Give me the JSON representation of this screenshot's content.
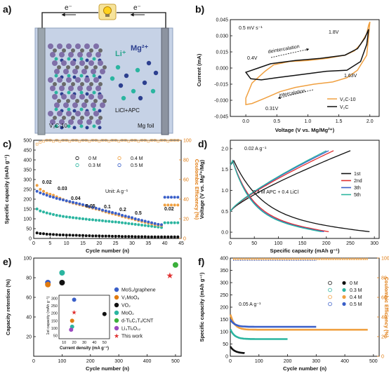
{
  "panel_letters": [
    "a)",
    "b)",
    "c)",
    "d)",
    "e)",
    "f)"
  ],
  "colors": {
    "orange": "#f0a040",
    "black": "#111111",
    "teal": "#2bb5a0",
    "blue": "#3a5fc8",
    "green": "#3bb0a0",
    "red": "#e03030"
  },
  "panel_a": {
    "electron_left": "e⁻",
    "electron_right": "e⁻",
    "li_label": "Li⁺",
    "mg_label": "Mg²⁺",
    "electrolyte": "LiCl+APC",
    "left_electrode": "V₂C-10",
    "right_electrode": "Mg foil",
    "bulb_icon": "lightbulb-icon"
  },
  "panel_b": {
    "scan_rate": "0.5 mV s⁻¹",
    "deintercalation": "deintercalation",
    "intercalation": "intercalation",
    "peaks": [
      "0.4V",
      "1.8V",
      "1.63V",
      "0.31V"
    ],
    "legend": [
      "V₂C-10",
      "V₂C"
    ],
    "ylabel": "Current (mA)",
    "xlabel": "Voltage (V vs. Mg/Mg²⁺)",
    "xticks": [
      "0.0",
      "0.5",
      "1.0",
      "1.5",
      "2.0"
    ],
    "yticks": [
      "0.045",
      "0.030",
      "0.015",
      "0.000",
      "-0.015",
      "-0.030",
      "-0.045"
    ]
  },
  "panel_c": {
    "ylabel": "Specific capacity (mAh g⁻¹)",
    "y2label": "Coulombic Efficiency (%)",
    "xlabel": "Cycle number (n)",
    "xticks": [
      "0",
      "5",
      "10",
      "15",
      "20",
      "25",
      "30",
      "35",
      "40",
      "45"
    ],
    "yticks": [
      "0",
      "50",
      "100",
      "150",
      "200",
      "250",
      "300",
      "350",
      "400",
      "450",
      "500"
    ],
    "y2ticks": [
      "0",
      "20",
      "40",
      "60",
      "80",
      "100"
    ],
    "legend": [
      "0 M",
      "0.3 M",
      "0.4 M",
      "0.5 M"
    ],
    "unit": "Unit: A g⁻¹",
    "rates": [
      "0.02",
      "0.03",
      "0.04",
      "0.05",
      "0.1",
      "0.2",
      "0.5",
      "0.02"
    ]
  },
  "panel_d": {
    "rate": "0.02 A g⁻¹",
    "electrolyte": "0.4 M APC + 0.4 LiCl",
    "legend": [
      "1st",
      "2nd",
      "3th",
      "5th"
    ],
    "ylabel": "Voltage (V vs. Mg²⁺/Mg)",
    "xlabel": "Specific capacity (mAh g⁻¹)",
    "xticks": [
      "0",
      "50",
      "100",
      "150",
      "200",
      "250",
      "300"
    ],
    "yticks": [
      "0.0",
      "0.5",
      "1.0",
      "1.5",
      "2.0"
    ]
  },
  "panel_e": {
    "ylabel": "Capacity retention (%)",
    "xlabel": "Cycle number (n)",
    "xticks": [
      "0",
      "100",
      "200",
      "300",
      "400",
      "500"
    ],
    "yticks": [
      "20",
      "40",
      "60",
      "80",
      "100"
    ],
    "legend": [
      "MoS₂/graphene",
      "V₂MoO₈",
      "VO₂",
      "MoO₂",
      "d-Ti₃C₂Tₓ/CNT",
      "Li₄Ti₅O₁₂",
      "This work"
    ],
    "inset_ylabel": "1st capacity (mAh g⁻¹)",
    "inset_xlabel": "Current density (mA g⁻¹)",
    "inset_xticks": [
      "10",
      "20",
      "30",
      "40",
      "50"
    ],
    "inset_yticks": [
      "50",
      "100",
      "150",
      "200",
      "250",
      "300"
    ]
  },
  "panel_f": {
    "rate": "0.05 A g⁻¹",
    "ylabel": "Specific capacity (mAh g⁻¹)",
    "y2label": "Coulombic Efficiency (%)",
    "xlabel": "Cycle number (n)",
    "xticks": [
      "0",
      "100",
      "200",
      "300",
      "400",
      "500"
    ],
    "yticks": [
      "0",
      "50",
      "100",
      "150",
      "200",
      "250",
      "300",
      "350",
      "400"
    ],
    "y2ticks": [
      "0",
      "20",
      "40",
      "60",
      "80",
      "100"
    ],
    "legend": [
      "0 M",
      "0.3 M",
      "0.4 M",
      "0.5 M"
    ]
  },
  "chart_data": [
    {
      "type": "line",
      "panel": "b",
      "xlabel": "Voltage (V vs. Mg/Mg²⁺)",
      "ylabel": "Current (mA)",
      "xlim": [
        -0.25,
        2.15
      ],
      "ylim": [
        -0.045,
        0.045
      ],
      "series": [
        {
          "name": "V₂C-10",
          "x": [
            0.31,
            0.45,
            0.7,
            1.0,
            1.3,
            1.6,
            1.75,
            1.85,
            1.95,
            1.98,
            2.0,
            1.98,
            1.95,
            1.8,
            1.63,
            1.4,
            1.1,
            0.8,
            0.55,
            0.31,
            0.1,
            0.0,
            0.0,
            0.1,
            0.31
          ],
          "y": [
            -0.003,
            0.003,
            0.006,
            0.007,
            0.009,
            0.012,
            0.016,
            0.022,
            0.032,
            0.04,
            0.043,
            0.03,
            0.012,
            -0.002,
            -0.009,
            -0.013,
            -0.015,
            -0.018,
            -0.022,
            -0.028,
            -0.033,
            -0.034,
            -0.028,
            -0.014,
            -0.003
          ]
        },
        {
          "name": "V₂C",
          "x": [
            0.0,
            0.2,
            0.4,
            0.8,
            1.2,
            1.6,
            1.8,
            1.92,
            1.98,
            1.95,
            1.85,
            1.63,
            1.3,
            0.9,
            0.5,
            0.25,
            0.08,
            0.0
          ],
          "y": [
            -0.004,
            0.0,
            0.004,
            0.007,
            0.009,
            0.012,
            0.018,
            0.028,
            0.036,
            0.022,
            0.006,
            -0.002,
            -0.003,
            -0.006,
            -0.009,
            -0.011,
            -0.01,
            -0.004
          ]
        }
      ]
    },
    {
      "type": "scatter",
      "panel": "c",
      "xlabel": "Cycle number (n)",
      "ylabel": "Specific capacity (mAh g⁻¹)",
      "y2label": "Coulombic Efficiency (%)",
      "xlim": [
        0,
        45
      ],
      "ylim": [
        0,
        500
      ],
      "y2lim": [
        0,
        100
      ],
      "series": [
        {
          "name": "0 M",
          "x": [
            1,
            2,
            3,
            4,
            5,
            6,
            7,
            8,
            9,
            10,
            11,
            12,
            13,
            14,
            15,
            16,
            17,
            18,
            19,
            20,
            21,
            22,
            23,
            24,
            25,
            26,
            27,
            28,
            29,
            30,
            31,
            32,
            33,
            34,
            35,
            36,
            37,
            38,
            39,
            40,
            41,
            42,
            43,
            44
          ],
          "values": [
            28,
            25,
            24,
            22,
            21,
            20,
            19,
            18,
            18,
            17,
            17,
            16,
            16,
            15,
            15,
            14,
            14,
            13,
            13,
            13,
            12,
            12,
            12,
            11,
            11,
            11,
            10,
            10,
            10,
            10,
            9,
            9,
            9,
            9,
            8,
            8,
            8,
            8,
            8,
            8,
            8,
            8,
            8,
            8
          ]
        },
        {
          "name": "0.3 M",
          "x": [
            1,
            2,
            3,
            4,
            5,
            6,
            7,
            8,
            9,
            10,
            11,
            12,
            13,
            14,
            15,
            16,
            17,
            18,
            19,
            20,
            21,
            22,
            23,
            24,
            25,
            26,
            27,
            28,
            29,
            30,
            31,
            32,
            33,
            34,
            35,
            36,
            37,
            38,
            39,
            40,
            41,
            42,
            43,
            44
          ],
          "values": [
            150,
            140,
            135,
            130,
            126,
            122,
            118,
            115,
            112,
            110,
            108,
            106,
            104,
            102,
            100,
            98,
            96,
            95,
            93,
            92,
            90,
            88,
            87,
            85,
            84,
            82,
            80,
            78,
            76,
            74,
            72,
            70,
            68,
            66,
            64,
            62,
            60,
            58,
            56,
            80,
            80,
            80,
            80,
            80
          ]
        },
        {
          "name": "0.4 M",
          "x": [
            1,
            2,
            3,
            4,
            5,
            6,
            7,
            8,
            9,
            10,
            11,
            12,
            13,
            14,
            15,
            16,
            17,
            18,
            19,
            20,
            21,
            22,
            23,
            24,
            25,
            26,
            27,
            28,
            29,
            30,
            31,
            32,
            33,
            34,
            35,
            36,
            37,
            38,
            39,
            40,
            41,
            42,
            43,
            44
          ],
          "values": [
            270,
            250,
            240,
            230,
            225,
            220,
            212,
            205,
            198,
            190,
            185,
            180,
            176,
            172,
            168,
            164,
            158,
            154,
            150,
            146,
            140,
            135,
            130,
            126,
            122,
            118,
            112,
            108,
            104,
            100,
            95,
            90,
            86,
            82,
            78,
            74,
            70,
            68,
            66,
            170,
            170,
            170,
            170,
            170
          ]
        },
        {
          "name": "0.5 M",
          "x": [
            1,
            2,
            3,
            4,
            5,
            6,
            7,
            8,
            9,
            10,
            11,
            12,
            13,
            14,
            15,
            16,
            17,
            18,
            19,
            20,
            21,
            22,
            23,
            24,
            25,
            26,
            27,
            28,
            29,
            30,
            31,
            32,
            33,
            34,
            35,
            36,
            37,
            38,
            39,
            40,
            41,
            42,
            43,
            44
          ],
          "values": [
            240,
            232,
            226,
            220,
            214,
            210,
            204,
            200,
            196,
            192,
            188,
            184,
            180,
            176,
            172,
            168,
            162,
            158,
            154,
            150,
            144,
            140,
            136,
            132,
            128,
            124,
            118,
            114,
            110,
            106,
            100,
            96,
            92,
            88,
            84,
            80,
            76,
            72,
            70,
            210,
            210,
            210,
            210,
            210
          ]
        }
      ],
      "ce_values": [
        96,
        98,
        99,
        100,
        100,
        99,
        100,
        99,
        100,
        100,
        99,
        100,
        100,
        99,
        100,
        100,
        99,
        100,
        100,
        99,
        100,
        100,
        99,
        100,
        100,
        99,
        100,
        100,
        99,
        100,
        100,
        99,
        100,
        100,
        99,
        100,
        100,
        99,
        100,
        100,
        99,
        100,
        100,
        100
      ],
      "annotations": [
        "0.02",
        "0.03",
        "0.04",
        "0.05",
        "0.1",
        "0.2",
        "0.5",
        "0.02"
      ]
    },
    {
      "type": "line",
      "panel": "d",
      "xlabel": "Specific capacity (mAh g⁻¹)",
      "ylabel": "Voltage (V vs. Mg²⁺/Mg)",
      "xlim": [
        0,
        310
      ],
      "ylim": [
        -0.15,
        2.2
      ],
      "series": [
        {
          "name": "1st",
          "charge_end": 250,
          "discharge_end": 290
        },
        {
          "name": "2nd",
          "charge_end": 215,
          "discharge_end": 205
        },
        {
          "name": "3th",
          "charge_end": 205,
          "discharge_end": 195
        },
        {
          "name": "5th",
          "charge_end": 200,
          "discharge_end": 190
        }
      ]
    },
    {
      "type": "scatter",
      "panel": "e",
      "xlabel": "Cycle number (n)",
      "ylabel": "Capacity retention (%)",
      "xlim": [
        0,
        520
      ],
      "ylim": [
        0,
        100
      ],
      "series": [
        {
          "name": "MoS₂/graphene",
          "x": [
            50
          ],
          "y": [
            75
          ]
        },
        {
          "name": "V₂MoO₈",
          "x": [
            50
          ],
          "y": [
            73
          ]
        },
        {
          "name": "VO₂",
          "x": [
            100
          ],
          "y": [
            75
          ]
        },
        {
          "name": "MoO₂",
          "x": [
            100
          ],
          "y": [
            85
          ]
        },
        {
          "name": "d-Ti₃C₂Tₓ/CNT",
          "x": [
            500
          ],
          "y": [
            93
          ]
        },
        {
          "name": "Li₄Ti₅O₁₂",
          "x": [
            100
          ],
          "y": [
            50
          ]
        },
        {
          "name": "This work",
          "x": [
            480
          ],
          "y": [
            82
          ]
        }
      ],
      "inset": {
        "xlabel": "Current density (mA g⁻¹)",
        "ylabel": "1st capacity (mAh g⁻¹)",
        "points": [
          {
            "x": 20,
            "y": 290,
            "color": "#3a5fc8"
          },
          {
            "x": 18,
            "y": 150,
            "color": "#e07b10"
          },
          {
            "x": 50,
            "y": 195,
            "color": "#111111"
          },
          {
            "x": 18,
            "y": 110,
            "color": "#2bb5a0"
          },
          {
            "x": 17,
            "y": 90,
            "color": "#9b4bc0"
          },
          {
            "x": 20,
            "y": 205,
            "color": "#e03030"
          }
        ]
      }
    },
    {
      "type": "scatter",
      "panel": "f",
      "xlabel": "Cycle number (n)",
      "ylabel": "Specific capacity (mAh g⁻¹)",
      "y2label": "Coulombic Efficiency (%)",
      "xlim": [
        0,
        520
      ],
      "ylim": [
        0,
        400
      ],
      "y2lim": [
        0,
        100
      ],
      "series": [
        {
          "name": "0 M",
          "cycles": 50,
          "start": 40,
          "plateau": 12
        },
        {
          "name": "0.3 M",
          "cycles": 200,
          "start": 110,
          "plateau": 70
        },
        {
          "name": "0.4 M",
          "cycles": 480,
          "start": 170,
          "plateau": 108
        },
        {
          "name": "0.5 M",
          "cycles": 300,
          "start": 150,
          "plateau": 120
        }
      ],
      "ce_level": 99
    }
  ]
}
